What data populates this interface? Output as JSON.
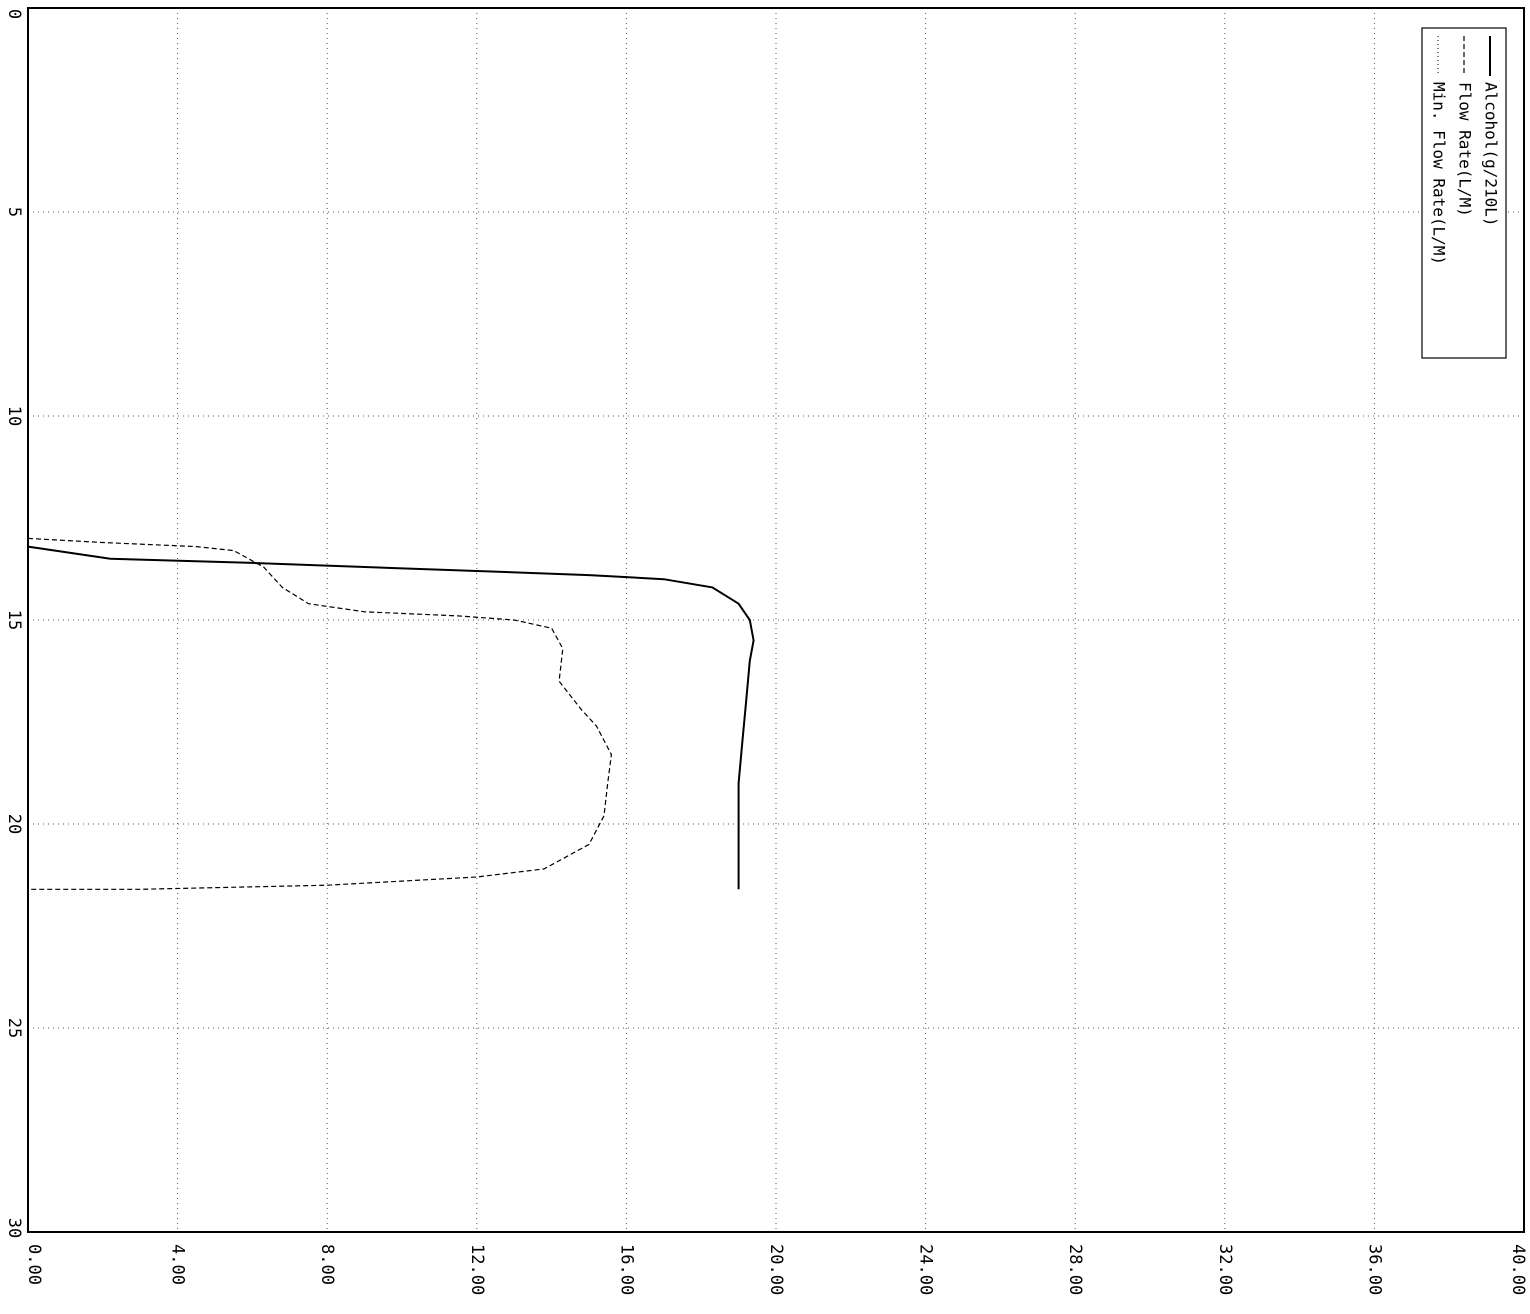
{
  "chart_data": {
    "type": "line",
    "title": "",
    "orientation": "rotated-90-clockwise",
    "value_axis": {
      "range": [
        0,
        40
      ],
      "ticks": [
        "0.00",
        "4.00",
        "8.00",
        "12.00",
        "16.00",
        "20.00",
        "24.00",
        "28.00",
        "32.00",
        "36.00",
        "40.00"
      ]
    },
    "time_axis": {
      "range": [
        0,
        30
      ],
      "ticks": [
        "0",
        "5",
        "10",
        "15",
        "20",
        "25",
        "30"
      ]
    },
    "grid": true,
    "legend": {
      "placement": "top-right",
      "entries": [
        {
          "label": "Alcohol(g/210L)",
          "style": "solid"
        },
        {
          "label": "Flow Rate(L/M)",
          "style": "dashed"
        },
        {
          "label": "Min. Flow Rate(L/M)",
          "style": "dotted"
        }
      ]
    },
    "series": [
      {
        "name": "Alcohol(g/210L)",
        "style": "solid",
        "points": [
          [
            13.2,
            0.0
          ],
          [
            13.5,
            2.2
          ],
          [
            13.6,
            6.0
          ],
          [
            13.7,
            9.0
          ],
          [
            13.8,
            12.0
          ],
          [
            13.9,
            15.0
          ],
          [
            14.0,
            17.0
          ],
          [
            14.2,
            18.3
          ],
          [
            14.6,
            19.0
          ],
          [
            15.0,
            19.3
          ],
          [
            15.5,
            19.4
          ],
          [
            16.0,
            19.3
          ],
          [
            17.0,
            19.2
          ],
          [
            18.0,
            19.1
          ],
          [
            19.0,
            19.0
          ],
          [
            20.0,
            19.0
          ],
          [
            21.0,
            19.0
          ],
          [
            21.6,
            19.0
          ]
        ]
      },
      {
        "name": "Flow Rate(L/M)",
        "style": "dashed",
        "points": [
          [
            13.0,
            0.0
          ],
          [
            13.1,
            2.0
          ],
          [
            13.2,
            4.5
          ],
          [
            13.3,
            5.5
          ],
          [
            13.7,
            6.3
          ],
          [
            14.2,
            6.8
          ],
          [
            14.6,
            7.5
          ],
          [
            14.8,
            9.0
          ],
          [
            14.9,
            11.5
          ],
          [
            15.0,
            13.0
          ],
          [
            15.2,
            14.0
          ],
          [
            15.7,
            14.3
          ],
          [
            16.5,
            14.2
          ],
          [
            17.2,
            14.8
          ],
          [
            17.6,
            15.2
          ],
          [
            18.3,
            15.6
          ],
          [
            19.0,
            15.5
          ],
          [
            19.8,
            15.4
          ],
          [
            20.5,
            15.0
          ],
          [
            21.1,
            13.8
          ],
          [
            21.3,
            12.0
          ],
          [
            21.5,
            8.0
          ],
          [
            21.6,
            3.0
          ],
          [
            21.6,
            0.0
          ]
        ]
      },
      {
        "name": "Min. Flow Rate(L/M)",
        "style": "dotted",
        "points": []
      }
    ]
  }
}
